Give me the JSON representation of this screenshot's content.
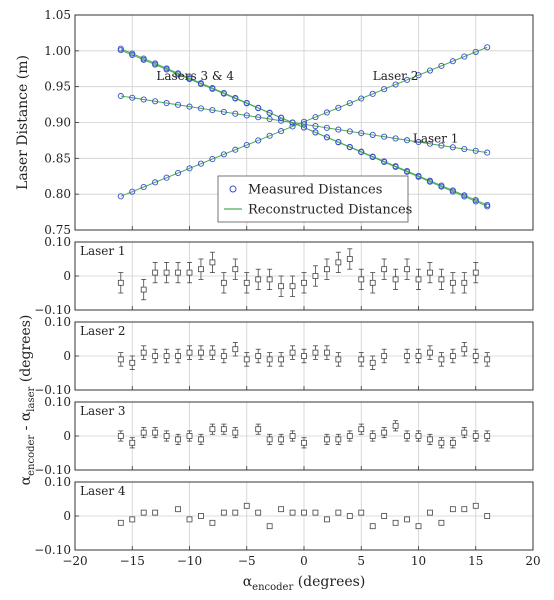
{
  "chart_data": [
    {
      "type": "scatter",
      "ylabel": "Laser Distance (m)",
      "xlim": [
        -20,
        20
      ],
      "ylim": [
        0.75,
        1.05
      ],
      "xticks": [
        -20,
        -15,
        -10,
        -5,
        0,
        5,
        10,
        15,
        20
      ],
      "yticks": [
        0.75,
        0.8,
        0.85,
        0.9,
        0.95,
        1.0,
        1.05
      ],
      "ytick_labels": [
        "0.75",
        "0.80",
        "0.85",
        "0.90",
        "0.95",
        "1.00",
        "1.05"
      ],
      "grid": true,
      "legend": {
        "position": "bottom-center",
        "entries": [
          {
            "label": "Measured Distances",
            "marker": "circle",
            "color": "#3a4fd0"
          },
          {
            "label": "Reconstructed Distances",
            "marker": "line",
            "color": "#4caf50"
          }
        ]
      },
      "annotations": [
        {
          "text": "Lasers 3 & 4",
          "x": -9.5,
          "y": 0.965
        },
        {
          "text": "Laser 2",
          "x": 8,
          "y": 0.965
        },
        {
          "text": "Laser 1",
          "x": 11.5,
          "y": 0.878
        }
      ],
      "x": [
        -16,
        -15,
        -14,
        -13,
        -12,
        -11,
        -10,
        -9,
        -8,
        -7,
        -6,
        -5,
        -4,
        -3,
        -2,
        -1,
        0,
        1,
        2,
        3,
        4,
        5,
        6,
        7,
        8,
        9,
        10,
        11,
        12,
        13,
        14,
        15,
        16
      ],
      "series_lines": [
        {
          "name": "Laser 2",
          "y_start": 0.797,
          "y_end": 1.005
        },
        {
          "name": "Laser 1",
          "y_start": 0.937,
          "y_end": 0.858
        },
        {
          "name": "Laser 3",
          "y_start": 1.001,
          "y_end": 0.785
        },
        {
          "name": "Laser 4",
          "y_start": 1.003,
          "y_end": 0.783
        }
      ]
    },
    {
      "type": "scatter",
      "title": "Laser 1",
      "ylim": [
        -0.1,
        0.1
      ],
      "yticks": [
        -0.1,
        0,
        0.1
      ],
      "ytick_labels": [
        "−0.10",
        "0",
        "0.10"
      ],
      "x": [
        -16,
        -15,
        -14,
        -13,
        -12,
        -11,
        -10,
        -9,
        -8,
        -7,
        -6,
        -5,
        -4,
        -3,
        -2,
        -1,
        0,
        1,
        2,
        3,
        4,
        5,
        6,
        7,
        8,
        9,
        10,
        11,
        12,
        13,
        14,
        15,
        16
      ],
      "y": [
        -0.02,
        0.0,
        -0.04,
        0.01,
        0.01,
        0.01,
        0.01,
        0.02,
        0.04,
        -0.02,
        0.02,
        -0.02,
        -0.01,
        -0.01,
        -0.03,
        -0.03,
        -0.02,
        0.0,
        0.02,
        0.04,
        0.05,
        -0.01,
        -0.02,
        0.02,
        -0.01,
        0.02,
        -0.01,
        0.01,
        -0.01,
        -0.02,
        -0.02,
        0.01,
        0.0
      ],
      "err": [
        0.03,
        0.03,
        0.03,
        0.03,
        0.03,
        0.03,
        0.03,
        0.03,
        0.03,
        0.03,
        0.03,
        0.03,
        0.03,
        0.03,
        0.03,
        0.03,
        0.03,
        0.03,
        0.03,
        0.03,
        0.03,
        0.03,
        0.03,
        0.03,
        0.03,
        0.03,
        0.03,
        0.03,
        0.03,
        0.03,
        0.03,
        0.03,
        0.03
      ],
      "present": [
        1,
        0,
        1,
        1,
        1,
        1,
        1,
        1,
        1,
        1,
        1,
        1,
        1,
        1,
        1,
        1,
        1,
        1,
        1,
        1,
        1,
        1,
        1,
        1,
        1,
        1,
        1,
        1,
        1,
        1,
        1,
        1,
        0
      ]
    },
    {
      "type": "scatter",
      "title": "Laser 2",
      "ylim": [
        -0.1,
        0.1
      ],
      "yticks": [
        -0.1,
        0,
        0.1
      ],
      "ytick_labels": [
        "−0.10",
        "0",
        "0.10"
      ],
      "x": [
        -16,
        -15,
        -14,
        -13,
        -12,
        -11,
        -10,
        -9,
        -8,
        -7,
        -6,
        -5,
        -4,
        -3,
        -2,
        -1,
        0,
        1,
        2,
        3,
        4,
        5,
        6,
        7,
        8,
        9,
        10,
        11,
        12,
        13,
        14,
        15,
        16
      ],
      "y": [
        -0.01,
        -0.02,
        0.01,
        0.0,
        0.0,
        0.0,
        0.01,
        0.01,
        0.01,
        0.0,
        0.02,
        -0.01,
        0.0,
        -0.01,
        -0.01,
        0.01,
        0.0,
        0.01,
        0.01,
        -0.01,
        0.0,
        -0.01,
        -0.02,
        0.0,
        0.0,
        0.0,
        0.0,
        0.01,
        -0.01,
        0.0,
        0.02,
        0.0,
        -0.01
      ],
      "err": [
        0.02,
        0.02,
        0.02,
        0.02,
        0.02,
        0.02,
        0.02,
        0.02,
        0.02,
        0.02,
        0.02,
        0.02,
        0.02,
        0.02,
        0.02,
        0.02,
        0.02,
        0.02,
        0.02,
        0.02,
        0.02,
        0.02,
        0.02,
        0.02,
        0.02,
        0.02,
        0.02,
        0.02,
        0.02,
        0.02,
        0.02,
        0.02,
        0.02
      ],
      "present": [
        1,
        1,
        1,
        1,
        1,
        1,
        1,
        1,
        1,
        1,
        1,
        1,
        1,
        1,
        1,
        1,
        1,
        1,
        1,
        1,
        0,
        1,
        1,
        1,
        0,
        1,
        1,
        1,
        1,
        1,
        1,
        1,
        1
      ]
    },
    {
      "type": "scatter",
      "title": "Laser 3",
      "ylim": [
        -0.1,
        0.1
      ],
      "yticks": [
        -0.1,
        0,
        0.1
      ],
      "ytick_labels": [
        "−0.10",
        "0",
        "0.10"
      ],
      "x": [
        -16,
        -15,
        -14,
        -13,
        -12,
        -11,
        -10,
        -9,
        -8,
        -7,
        -6,
        -5,
        -4,
        -3,
        -2,
        -1,
        0,
        1,
        2,
        3,
        4,
        5,
        6,
        7,
        8,
        9,
        10,
        11,
        12,
        13,
        14,
        15,
        16
      ],
      "y": [
        0.0,
        -0.02,
        0.01,
        0.01,
        0.0,
        -0.01,
        0.0,
        -0.01,
        0.02,
        0.02,
        0.01,
        0.0,
        0.02,
        -0.01,
        -0.01,
        0.0,
        -0.02,
        0.0,
        -0.01,
        -0.01,
        0.0,
        0.02,
        0.0,
        0.01,
        0.03,
        0.0,
        0.0,
        -0.01,
        -0.02,
        -0.02,
        0.01,
        0.0,
        0.0
      ],
      "err": [
        0.015,
        0.015,
        0.015,
        0.015,
        0.015,
        0.015,
        0.015,
        0.015,
        0.015,
        0.015,
        0.015,
        0.015,
        0.015,
        0.015,
        0.015,
        0.015,
        0.015,
        0.015,
        0.015,
        0.015,
        0.015,
        0.015,
        0.015,
        0.015,
        0.015,
        0.015,
        0.015,
        0.015,
        0.015,
        0.015,
        0.015,
        0.015,
        0.015
      ],
      "present": [
        1,
        1,
        1,
        1,
        1,
        1,
        1,
        1,
        1,
        1,
        1,
        0,
        1,
        1,
        1,
        1,
        1,
        0,
        1,
        1,
        1,
        1,
        1,
        1,
        1,
        1,
        1,
        1,
        1,
        1,
        1,
        1,
        1
      ]
    },
    {
      "type": "scatter",
      "title": "Laser 4",
      "xlabel": "α_encoder (degrees)",
      "ylim": [
        -0.1,
        0.1
      ],
      "yticks": [
        -0.1,
        0,
        0.1
      ],
      "ytick_labels": [
        "−0.10",
        "0",
        "0.10"
      ],
      "x": [
        -16,
        -15,
        -14,
        -13,
        -12,
        -11,
        -10,
        -9,
        -8,
        -7,
        -6,
        -5,
        -4,
        -3,
        -2,
        -1,
        0,
        1,
        2,
        3,
        4,
        5,
        6,
        7,
        8,
        9,
        10,
        11,
        12,
        13,
        14,
        15,
        16
      ],
      "y": [
        -0.02,
        -0.01,
        0.01,
        0.01,
        0.0,
        0.02,
        -0.01,
        0.0,
        -0.02,
        0.01,
        0.01,
        0.03,
        0.01,
        -0.03,
        0.02,
        0.01,
        0.01,
        0.01,
        -0.01,
        0.01,
        0.0,
        0.01,
        -0.03,
        0.0,
        -0.02,
        -0.01,
        -0.03,
        0.01,
        -0.02,
        0.02,
        0.02,
        0.03,
        0.0
      ],
      "err": [
        0.006,
        0.006,
        0.006,
        0.006,
        0.006,
        0.006,
        0.006,
        0.006,
        0.006,
        0.006,
        0.006,
        0.006,
        0.006,
        0.006,
        0.006,
        0.006,
        0.006,
        0.006,
        0.006,
        0.006,
        0.006,
        0.006,
        0.006,
        0.006,
        0.006,
        0.006,
        0.006,
        0.006,
        0.006,
        0.006,
        0.006,
        0.006,
        0.006
      ],
      "present": [
        1,
        1,
        1,
        1,
        0,
        1,
        1,
        1,
        1,
        1,
        1,
        1,
        1,
        1,
        1,
        1,
        1,
        1,
        1,
        1,
        1,
        1,
        1,
        1,
        1,
        1,
        1,
        1,
        1,
        1,
        1,
        1,
        1
      ]
    }
  ],
  "shared": {
    "residual_ylabel": "αencoder - αlaser (degrees)",
    "xticks": [
      -20,
      -15,
      -10,
      -5,
      0,
      5,
      10,
      15,
      20
    ],
    "xtick_labels": [
      "−20",
      "−15",
      "−10",
      "−5",
      "0",
      "5",
      "10",
      "15",
      "20"
    ],
    "xlim": [
      -20,
      20
    ],
    "marker_color": "#3a4fd0",
    "line_color": "#4caf50",
    "residual_color": "#444444"
  }
}
